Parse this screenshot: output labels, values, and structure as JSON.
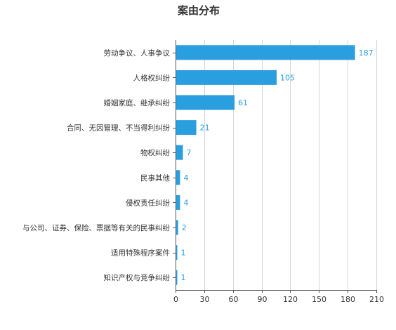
{
  "chart_data": {
    "type": "bar",
    "orientation": "horizontal",
    "title": "案由分布",
    "categories": [
      "劳动争议、人事争议",
      "人格权纠纷",
      "婚姻家庭、继承纠纷",
      "合同、无因管理、不当得利纠纷",
      "物权纠纷",
      "民事其他",
      "侵权责任纠纷",
      "与公司、证券、保险、票据等有关的民事纠纷",
      "适用特殊程序案件",
      "知识产权与竞争纠纷"
    ],
    "values": [
      187,
      105,
      61,
      21,
      7,
      4,
      4,
      2,
      1,
      1
    ],
    "xlim": [
      0,
      210
    ],
    "xticks": [
      0,
      30,
      60,
      90,
      120,
      150,
      180,
      210
    ],
    "grid": true,
    "bar_color": "#2a9fe0",
    "label_color": "#2a9fe0"
  }
}
